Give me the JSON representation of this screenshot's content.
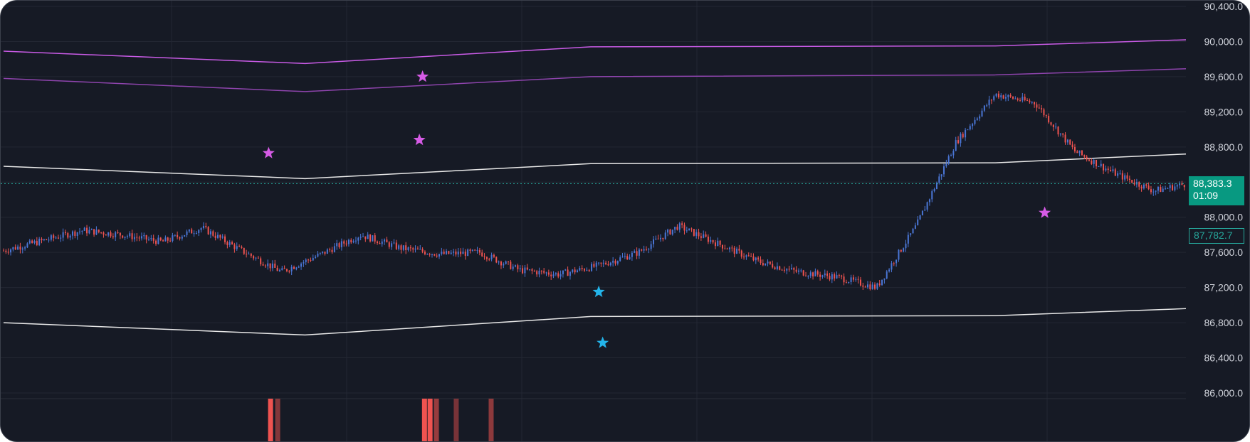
{
  "price_axis": {
    "ticks": [
      "90,400.0",
      "90,000.0",
      "89,600.0",
      "89,200.0",
      "88,800.0",
      "88,400.0",
      "88,000.0",
      "87,600.0",
      "87,200.0",
      "86,800.0",
      "86,400.0",
      "86,000.0"
    ]
  },
  "tags": {
    "current_price": "88,383.3",
    "countdown": "01:09",
    "last_value": "87,782.7"
  },
  "colors": {
    "background": "#161a25",
    "grid": "#232733",
    "up_candle": "#4a76d6",
    "down_candle": "#ef5350",
    "band_outer": "#c95be6",
    "band_inner": "#8e44ad",
    "band_mid": "#e8e8e8",
    "star_magenta": "#d65be6",
    "star_cyan": "#23b4ea",
    "current_price_line": "#26a69a",
    "volume_bar": "#ef5350"
  },
  "chart_data": {
    "type": "line",
    "title": "",
    "xlabel": "",
    "ylabel": "",
    "ylim": [
      85940,
      90400
    ],
    "yticks": [
      90400,
      90000,
      89600,
      89200,
      88800,
      88400,
      88000,
      87600,
      87200,
      86800,
      86400,
      86000
    ],
    "x": [
      0,
      100,
      150,
      200,
      250,
      300,
      350,
      380,
      400,
      450,
      500,
      550,
      600,
      650,
      700,
      750,
      800,
      850,
      900,
      950,
      1000,
      1050,
      1100,
      1150,
      1200,
      1250,
      1300,
      1350,
      1400,
      1450,
      1490
    ],
    "price_series": {
      "name": "",
      "values": [
        87620,
        87850,
        87800,
        87720,
        87880,
        87620,
        87380,
        87500,
        87580,
        87800,
        87650,
        87580,
        87600,
        87400,
        87350,
        87450,
        87600,
        87900,
        87700,
        87500,
        87380,
        87320,
        87200,
        87900,
        88850,
        89400,
        89300,
        88750,
        88500,
        88300,
        88380
      ]
    },
    "series": [
      {
        "name": "",
        "x": [
          0,
          380,
          740,
          1250,
          1490
        ],
        "values": [
          89890,
          89750,
          89940,
          89950,
          90020
        ]
      },
      {
        "name": "",
        "x": [
          0,
          380,
          740,
          1250,
          1490
        ],
        "values": [
          89580,
          89430,
          89600,
          89620,
          89690
        ]
      },
      {
        "name": "",
        "x": [
          0,
          380,
          740,
          1250,
          1490
        ],
        "values": [
          88580,
          88440,
          88610,
          88620,
          88720
        ]
      },
      {
        "name": "",
        "x": [
          0,
          380,
          740,
          1250,
          1490
        ],
        "values": [
          86800,
          86660,
          86870,
          86880,
          86960
        ]
      }
    ],
    "markers": [
      {
        "type": "star",
        "color": "magenta",
        "x": 334,
        "y": 88730
      },
      {
        "type": "star",
        "color": "magenta",
        "x": 528,
        "y": 89600
      },
      {
        "type": "star",
        "color": "magenta",
        "x": 524,
        "y": 88880
      },
      {
        "type": "star",
        "color": "cyan",
        "x": 750,
        "y": 87150
      },
      {
        "type": "star",
        "color": "cyan",
        "x": 755,
        "y": 86570
      },
      {
        "type": "star",
        "color": "magenta",
        "x": 1312,
        "y": 88050
      }
    ],
    "volume_events": [
      {
        "x": 336,
        "intensity": 1.0
      },
      {
        "x": 345,
        "intensity": 0.5
      },
      {
        "x": 530,
        "intensity": 1.0
      },
      {
        "x": 537,
        "intensity": 1.0
      },
      {
        "x": 545,
        "intensity": 0.6
      },
      {
        "x": 570,
        "intensity": 0.45
      },
      {
        "x": 614,
        "intensity": 0.55
      }
    ],
    "current_price": 88383.3,
    "last_value": 87782.7,
    "grid": true
  }
}
